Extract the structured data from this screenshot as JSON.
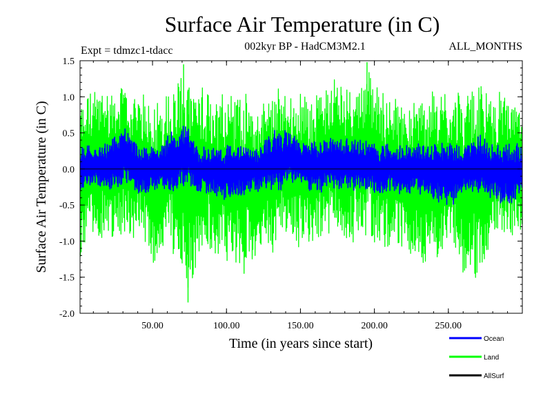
{
  "chart_data": {
    "type": "line",
    "title": "Surface Air Temperature (in C)",
    "subtitle": "002kyr BP - HadCM3M2.1",
    "left_annotation": "Expt = tdmzc1-tdacc",
    "right_annotation": "ALL_MONTHS",
    "xlabel": "Time (in years since start)",
    "ylabel": "Surface Air Temperature (in C)",
    "xlim": [
      1,
      300
    ],
    "ylim": [
      -2.0,
      1.5
    ],
    "x_ticks": [
      50,
      100,
      150,
      200,
      250
    ],
    "x_tick_labels": [
      "50.00",
      "100.00",
      "150.00",
      "200.00",
      "250.00"
    ],
    "y_ticks": [
      -2.0,
      -1.5,
      -1.0,
      -0.5,
      0.0,
      0.5,
      1.0,
      1.5
    ],
    "y_tick_labels": [
      "-2.0",
      "-1.5",
      "-1.0",
      "-0.5",
      "0.0",
      "0.5",
      "1.0",
      "1.5"
    ],
    "zero_line": true,
    "legend_position": "bottom-right",
    "series": [
      {
        "name": "Land",
        "color": "#00ff00",
        "x": [
          1,
          11,
          21,
          31,
          41,
          51,
          61,
          71,
          74,
          81,
          91,
          101,
          111,
          121,
          131,
          141,
          151,
          161,
          171,
          181,
          191,
          195,
          201,
          211,
          221,
          231,
          241,
          251,
          261,
          271,
          281,
          291,
          300
        ],
        "envelope_max": [
          0.9,
          1.1,
          1.12,
          1.12,
          0.95,
          0.97,
          1.0,
          1.45,
          1.1,
          1.05,
          1.05,
          1.08,
          1.05,
          0.8,
          1.1,
          1.05,
          1.0,
          1.0,
          1.2,
          1.1,
          1.2,
          1.48,
          1.1,
          1.0,
          0.85,
          0.98,
          1.05,
          1.0,
          1.05,
          1.15,
          0.95,
          1.0,
          0.8
        ],
        "envelope_min": [
          -1.25,
          -0.95,
          -0.9,
          -0.9,
          -0.95,
          -1.3,
          -1.0,
          -1.45,
          -1.85,
          -1.4,
          -1.2,
          -1.3,
          -1.45,
          -1.1,
          -1.1,
          -0.9,
          -1.1,
          -1.0,
          -0.95,
          -1.1,
          -0.95,
          -0.9,
          -1.05,
          -1.1,
          -1.05,
          -1.4,
          -1.2,
          -1.1,
          -1.35,
          -1.45,
          -1.0,
          -0.95,
          -0.75
        ]
      },
      {
        "name": "Ocean",
        "color": "#0000ff",
        "x": [
          1,
          11,
          21,
          31,
          41,
          51,
          61,
          71,
          81,
          91,
          101,
          111,
          121,
          131,
          141,
          151,
          161,
          171,
          181,
          191,
          201,
          211,
          221,
          231,
          241,
          251,
          261,
          271,
          281,
          291,
          300
        ],
        "envelope_max": [
          0.3,
          0.3,
          0.35,
          0.6,
          0.3,
          0.28,
          0.48,
          0.62,
          0.32,
          0.28,
          0.35,
          0.33,
          0.27,
          0.48,
          0.53,
          0.35,
          0.37,
          0.45,
          0.43,
          0.4,
          0.35,
          0.35,
          0.32,
          0.35,
          0.4,
          0.38,
          0.32,
          0.45,
          0.33,
          0.35,
          0.3
        ],
        "envelope_min": [
          -0.28,
          -0.25,
          -0.3,
          -0.22,
          -0.35,
          -0.3,
          -0.3,
          -0.25,
          -0.28,
          -0.35,
          -0.4,
          -0.35,
          -0.3,
          -0.3,
          -0.22,
          -0.25,
          -0.3,
          -0.25,
          -0.28,
          -0.3,
          -0.35,
          -0.3,
          -0.38,
          -0.35,
          -0.45,
          -0.5,
          -0.3,
          -0.35,
          -0.45,
          -0.45,
          -0.35
        ]
      },
      {
        "name": "AllSurf",
        "color": "#000000",
        "x": [],
        "envelope_max": [],
        "envelope_min": []
      }
    ]
  }
}
